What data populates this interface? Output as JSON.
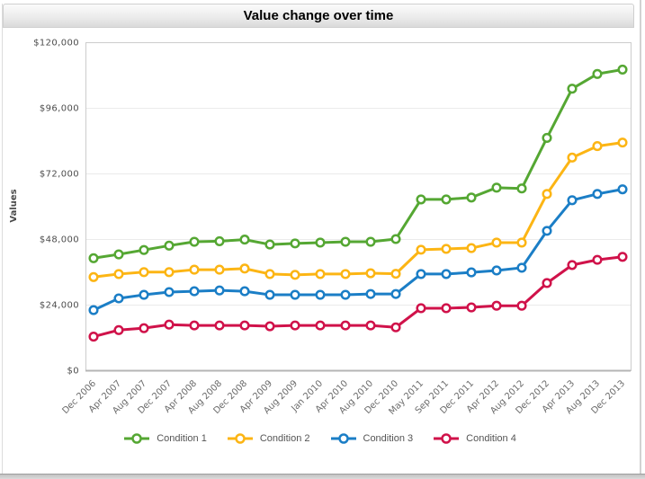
{
  "window": {
    "title": "Value change over time"
  },
  "colors": {
    "titlebar_text": "#000000",
    "plot_border": "#cccccc",
    "grid": "#ebebeb",
    "axis_line": "#b5b5b5",
    "tick_label": "#4d4d4d",
    "axis_label": "#6b6b6b",
    "y_axis_title": "#4a4a4a",
    "legend_text": "#555555",
    "marker_fill": "#ffffff"
  },
  "chart_data": {
    "type": "line",
    "title": "Value change over time",
    "xlabel": "",
    "ylabel": "Values",
    "ylim": [
      0,
      120000
    ],
    "grid": "horizontal",
    "legend_position": "bottom-center",
    "marker": "open-circle",
    "y_ticks": {
      "values": [
        0,
        24000,
        48000,
        72000,
        96000,
        120000
      ],
      "labels": [
        "$0",
        "$24,000",
        "$48,000",
        "$72,000",
        "$96,000",
        "$120,000"
      ]
    },
    "categories": [
      "Dec 2006",
      "Apr 2007",
      "Aug 2007",
      "Dec 2007",
      "Apr 2008",
      "Aug 2008",
      "Dec 2008",
      "Apr 2009",
      "Aug 2009",
      "Jan 2010",
      "Apr 2010",
      "Aug 2010",
      "Dec 2010",
      "May 2011",
      "Sep 2011",
      "Dec 2011",
      "Apr 2012",
      "Aug 2012",
      "Dec 2012",
      "Apr 2013",
      "Aug 2013",
      "Dec 2013"
    ],
    "series": [
      {
        "name": "Condition 1",
        "color": "#55A733",
        "values": [
          41000,
          42400,
          44000,
          45600,
          47000,
          47200,
          47800,
          46000,
          46400,
          46700,
          47000,
          47000,
          48000,
          62500,
          62500,
          63200,
          66800,
          66500,
          85000,
          103000,
          108400,
          110000
        ]
      },
      {
        "name": "Condition 2",
        "color": "#FCB514",
        "values": [
          34100,
          35200,
          35900,
          35900,
          36800,
          36800,
          37200,
          35200,
          34900,
          35200,
          35200,
          35500,
          35300,
          44100,
          44400,
          44700,
          46700,
          46700,
          64500,
          77800,
          82000,
          83300
        ]
      },
      {
        "name": "Condition 3",
        "color": "#1B7EC6",
        "values": [
          22000,
          26300,
          27600,
          28600,
          28900,
          29200,
          28900,
          27600,
          27600,
          27600,
          27600,
          27900,
          27900,
          35200,
          35200,
          35800,
          36500,
          37500,
          51000,
          62200,
          64500,
          66200
        ]
      },
      {
        "name": "Condition 4",
        "color": "#D0124A",
        "values": [
          12300,
          14700,
          15400,
          16700,
          16400,
          16400,
          16400,
          16100,
          16400,
          16400,
          16400,
          16400,
          15700,
          22700,
          22700,
          23000,
          23600,
          23600,
          31900,
          38500,
          40400,
          41500
        ]
      }
    ]
  }
}
